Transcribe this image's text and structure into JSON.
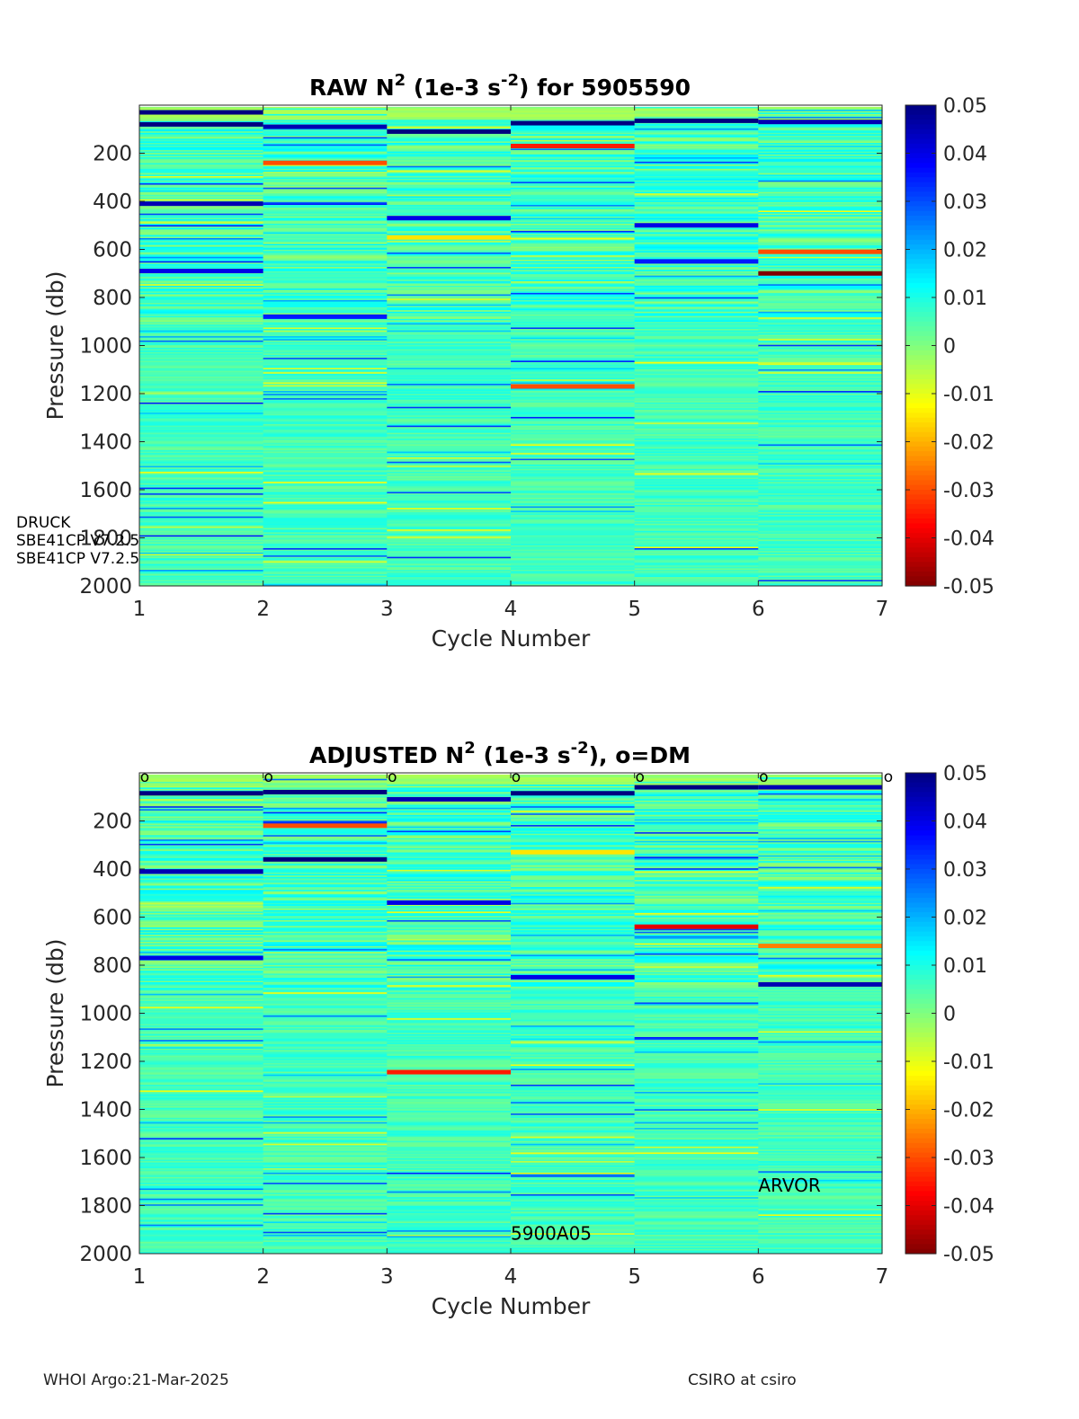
{
  "chart_data": [
    {
      "type": "heatmap",
      "title": "RAW N² (1e-3 s⁻²) for 5905590",
      "title_parts": {
        "a": "RAW N",
        "sup1": "2",
        "b": " (1e-3 s",
        "sup2": "-2",
        "c": ") for 5905590"
      },
      "xlabel": "Cycle Number",
      "ylabel": "Pressure (db)",
      "xlim": [
        1,
        7
      ],
      "ylim": [
        0,
        2000
      ],
      "y_reversed": true,
      "x_ticks": [
        "1",
        "2",
        "3",
        "4",
        "5",
        "6",
        "7"
      ],
      "y_ticks": [
        "200",
        "400",
        "600",
        "800",
        "1000",
        "1200",
        "1400",
        "1600",
        "1800",
        "2000"
      ],
      "colorbar": {
        "clim": [
          -0.05,
          0.05
        ],
        "colormap": "jet",
        "ticks": [
          "0.05",
          "0.04",
          "0.03",
          "0.02",
          "0.01",
          "0",
          "-0.01",
          "-0.02",
          "-0.03",
          "-0.04",
          "-0.05"
        ]
      },
      "cycles": [
        1,
        2,
        3,
        4,
        5,
        6
      ],
      "annotations": [
        {
          "text": "DRUCK",
          "pressure": 1735
        },
        {
          "text": "SBE41CP V7.2.5",
          "pressure": 1810
        },
        {
          "text": "SBE41CP V7.2.5",
          "pressure": 1885
        }
      ],
      "dm_markers": null,
      "strong_bands": [
        {
          "cycle": 1,
          "pressure": 30,
          "value": 0.05
        },
        {
          "cycle": 1,
          "pressure": 80,
          "value": 0.05
        },
        {
          "cycle": 1,
          "pressure": 410,
          "value": 0.045
        },
        {
          "cycle": 1,
          "pressure": 690,
          "value": 0.04
        },
        {
          "cycle": 2,
          "pressure": 90,
          "value": 0.045
        },
        {
          "cycle": 2,
          "pressure": 240,
          "value": -0.03
        },
        {
          "cycle": 2,
          "pressure": 880,
          "value": 0.035
        },
        {
          "cycle": 3,
          "pressure": 110,
          "value": 0.05
        },
        {
          "cycle": 3,
          "pressure": 470,
          "value": 0.04
        },
        {
          "cycle": 3,
          "pressure": 550,
          "value": -0.015
        },
        {
          "cycle": 4,
          "pressure": 75,
          "value": 0.05
        },
        {
          "cycle": 4,
          "pressure": 170,
          "value": -0.035
        },
        {
          "cycle": 4,
          "pressure": 1170,
          "value": -0.03
        },
        {
          "cycle": 5,
          "pressure": 65,
          "value": 0.05
        },
        {
          "cycle": 5,
          "pressure": 500,
          "value": 0.04
        },
        {
          "cycle": 5,
          "pressure": 650,
          "value": 0.035
        },
        {
          "cycle": 6,
          "pressure": 70,
          "value": 0.045
        },
        {
          "cycle": 6,
          "pressure": 610,
          "value": -0.03
        },
        {
          "cycle": 6,
          "pressure": 700,
          "value": -0.05
        }
      ],
      "seed": 7
    },
    {
      "type": "heatmap",
      "title": "ADJUSTED N² (1e-3 s⁻²), o=DM",
      "title_parts": {
        "a": "ADJUSTED N",
        "sup1": "2",
        "b": " (1e-3 s",
        "sup2": "-2",
        "c": "), o=DM"
      },
      "xlabel": "Cycle Number",
      "ylabel": "Pressure (db)",
      "xlim": [
        1,
        7
      ],
      "ylim": [
        0,
        2000
      ],
      "y_reversed": true,
      "x_ticks": [
        "1",
        "2",
        "3",
        "4",
        "5",
        "6",
        "7"
      ],
      "y_ticks": [
        "200",
        "400",
        "600",
        "800",
        "1000",
        "1200",
        "1400",
        "1600",
        "1800",
        "2000"
      ],
      "colorbar": {
        "clim": [
          -0.05,
          0.05
        ],
        "colormap": "jet",
        "ticks": [
          "0.05",
          "0.04",
          "0.03",
          "0.02",
          "0.01",
          "0",
          "-0.01",
          "-0.02",
          "-0.03",
          "-0.04",
          "-0.05"
        ]
      },
      "cycles": [
        1,
        2,
        3,
        4,
        5,
        6
      ],
      "annotations": [
        {
          "text": "ARVOR",
          "cycle": 6,
          "pressure": 1720
        },
        {
          "text": "5900A05",
          "cycle": 4,
          "pressure": 1920
        }
      ],
      "dm_markers": {
        "symbol": "o",
        "cycles": [
          1,
          2,
          3,
          4,
          5,
          6,
          7
        ]
      },
      "strong_bands": [
        {
          "cycle": 1,
          "pressure": 85,
          "value": 0.05
        },
        {
          "cycle": 1,
          "pressure": 410,
          "value": 0.045
        },
        {
          "cycle": 1,
          "pressure": 770,
          "value": 0.04
        },
        {
          "cycle": 2,
          "pressure": 80,
          "value": 0.05
        },
        {
          "cycle": 2,
          "pressure": 220,
          "value": -0.03
        },
        {
          "cycle": 2,
          "pressure": 360,
          "value": 0.05
        },
        {
          "cycle": 3,
          "pressure": 110,
          "value": 0.045
        },
        {
          "cycle": 3,
          "pressure": 540,
          "value": 0.04
        },
        {
          "cycle": 3,
          "pressure": 1245,
          "value": -0.035
        },
        {
          "cycle": 4,
          "pressure": 85,
          "value": 0.05
        },
        {
          "cycle": 4,
          "pressure": 330,
          "value": -0.015
        },
        {
          "cycle": 4,
          "pressure": 850,
          "value": 0.04
        },
        {
          "cycle": 5,
          "pressure": 60,
          "value": 0.05
        },
        {
          "cycle": 5,
          "pressure": 640,
          "value": -0.04
        },
        {
          "cycle": 6,
          "pressure": 60,
          "value": 0.045
        },
        {
          "cycle": 6,
          "pressure": 720,
          "value": -0.025
        },
        {
          "cycle": 6,
          "pressure": 880,
          "value": 0.045
        }
      ],
      "seed": 23
    }
  ],
  "footer": {
    "left": "WHOI Argo:21-Mar-2025",
    "right": "CSIRO at csiro"
  }
}
